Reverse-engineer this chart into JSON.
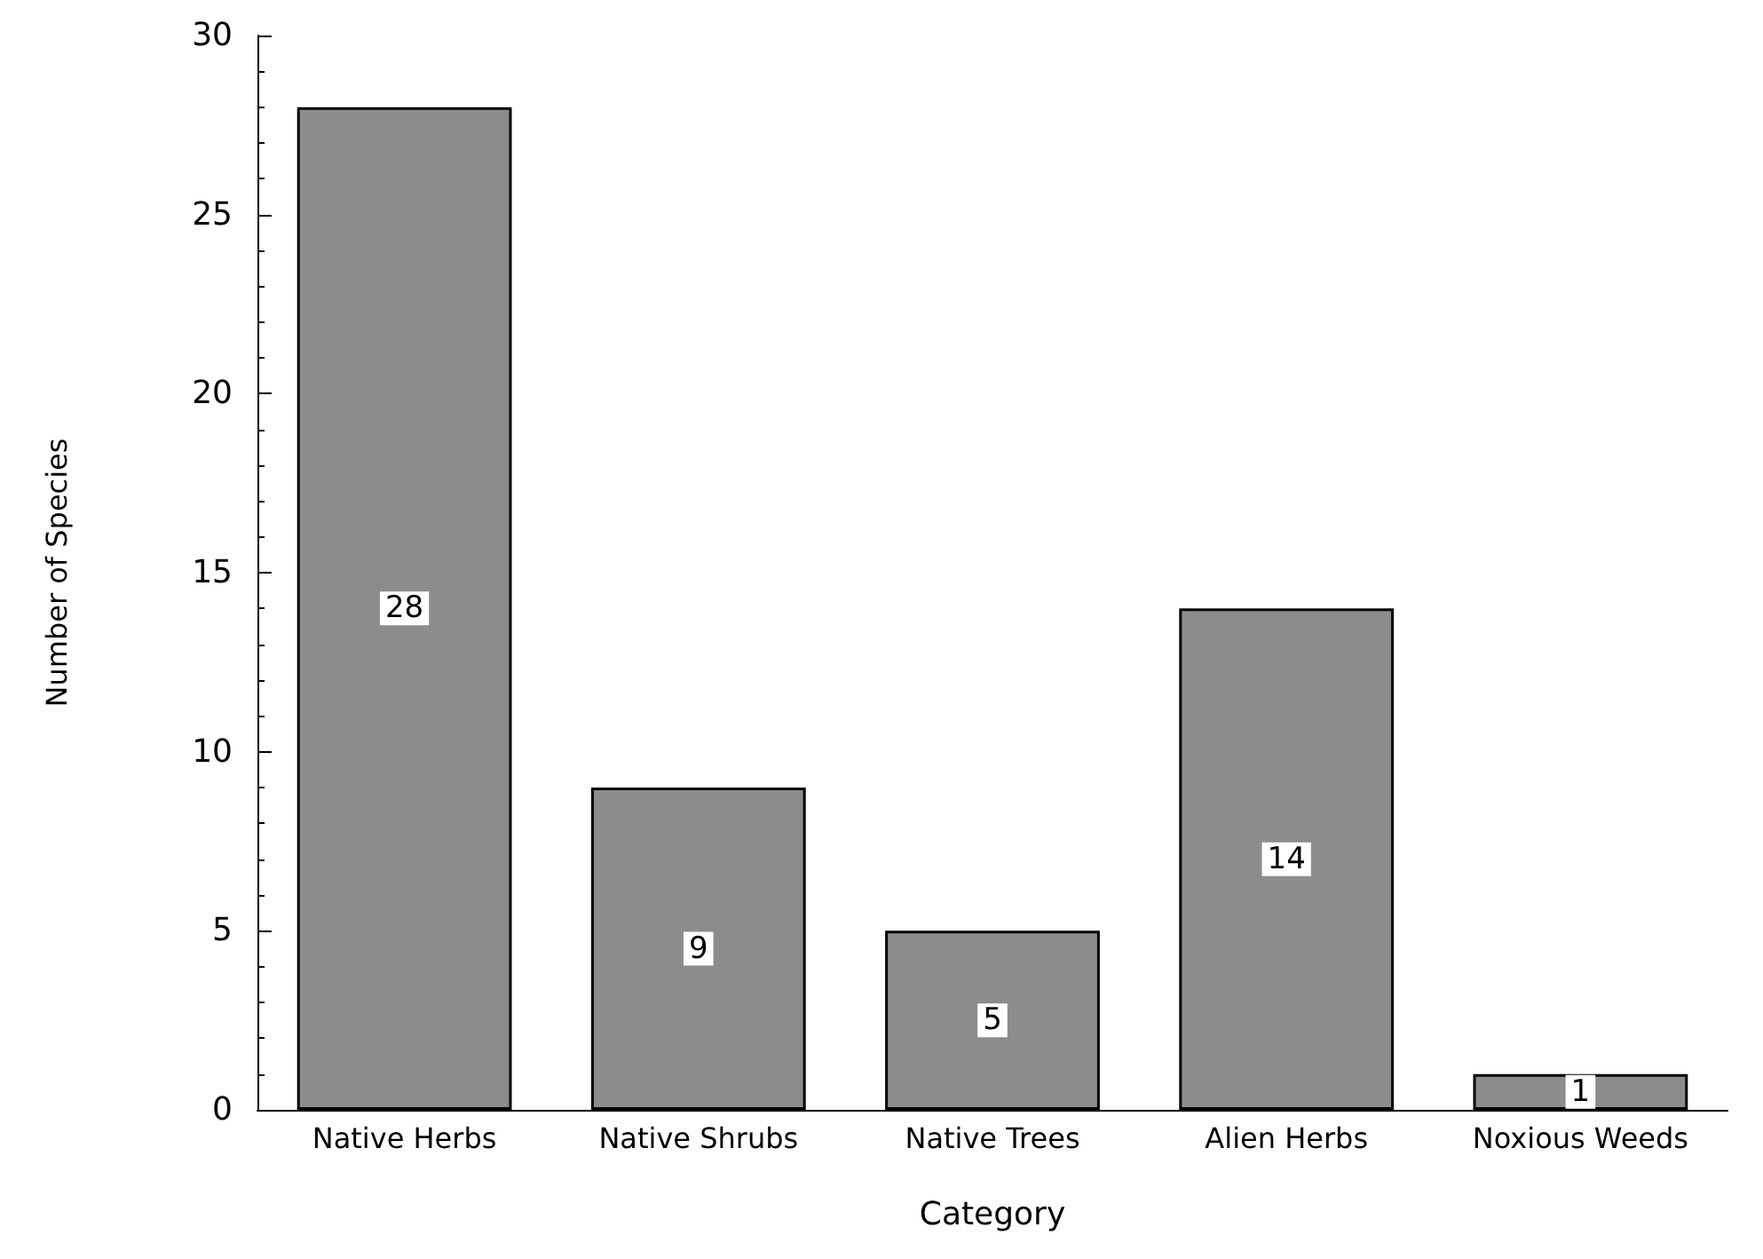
{
  "chart_data": {
    "type": "bar",
    "xlabel": "Category",
    "ylabel": "Number of Species",
    "categories": [
      "Native Herbs",
      "Native Shrubs",
      "Native Trees",
      "Alien Herbs",
      "Noxious Weeds"
    ],
    "values": [
      28,
      9,
      5,
      14,
      1
    ],
    "color": "#8c8c8c",
    "ylim": [
      0,
      30
    ],
    "yticks": [
      0,
      5,
      10,
      15,
      20,
      25,
      30
    ],
    "grid": false,
    "data_labels": true
  }
}
